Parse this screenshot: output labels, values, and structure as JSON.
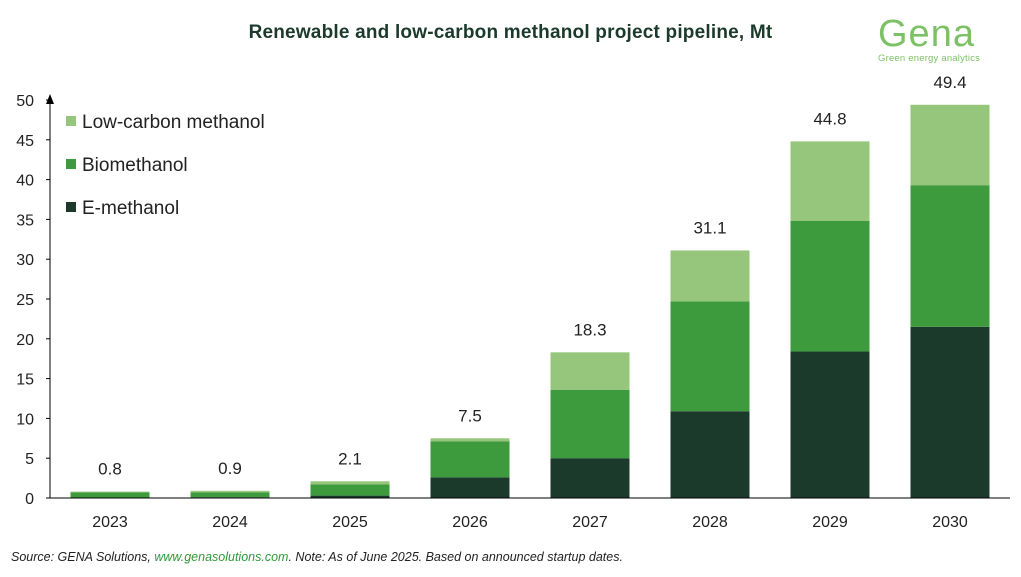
{
  "title": "Renewable and low-carbon methanol project pipeline, Mt",
  "logo": {
    "word": "Gena",
    "tagline": "Green energy analytics"
  },
  "source": {
    "prefix": "Source: GENA Solutions, ",
    "link": "www.genasolutions.com",
    "suffix": ". Note: As of June 2025. Based on announced startup dates."
  },
  "colors": {
    "e_methanol": "#1b3a2c",
    "biomethanol": "#3d9a3d",
    "low_carbon": "#95c67b",
    "axis": "#000000",
    "text": "#222222"
  },
  "chart_data": {
    "type": "bar",
    "stacked": true,
    "categories": [
      "2023",
      "2024",
      "2025",
      "2026",
      "2027",
      "2028",
      "2029",
      "2030"
    ],
    "series": [
      {
        "name": "E-methanol",
        "color": "#1b3a2c",
        "values": [
          0.05,
          0.1,
          0.3,
          2.6,
          5.0,
          10.9,
          18.4,
          21.5
        ]
      },
      {
        "name": "Biomethanol",
        "color": "#3d9a3d",
        "values": [
          0.65,
          0.6,
          1.4,
          4.5,
          8.6,
          13.8,
          16.4,
          17.8
        ]
      },
      {
        "name": "Low-carbon methanol",
        "color": "#95c67b",
        "values": [
          0.1,
          0.2,
          0.4,
          0.4,
          4.7,
          6.4,
          10.0,
          10.1
        ]
      }
    ],
    "totals": [
      0.8,
      0.9,
      2.1,
      7.5,
      18.3,
      31.1,
      44.8,
      49.4
    ],
    "total_labels": [
      "0.8",
      "0.9",
      "2.1",
      "7.5",
      "18.3",
      "31.1",
      "44.8",
      "49.4"
    ],
    "ylim": [
      0,
      50
    ],
    "yticks": [
      0,
      5,
      10,
      15,
      20,
      25,
      30,
      35,
      40,
      45,
      50
    ],
    "legend": {
      "placement": "top-left",
      "order": [
        "Low-carbon methanol",
        "Biomethanol",
        "E-methanol"
      ]
    },
    "grid": false,
    "xlabel": "",
    "ylabel": ""
  }
}
